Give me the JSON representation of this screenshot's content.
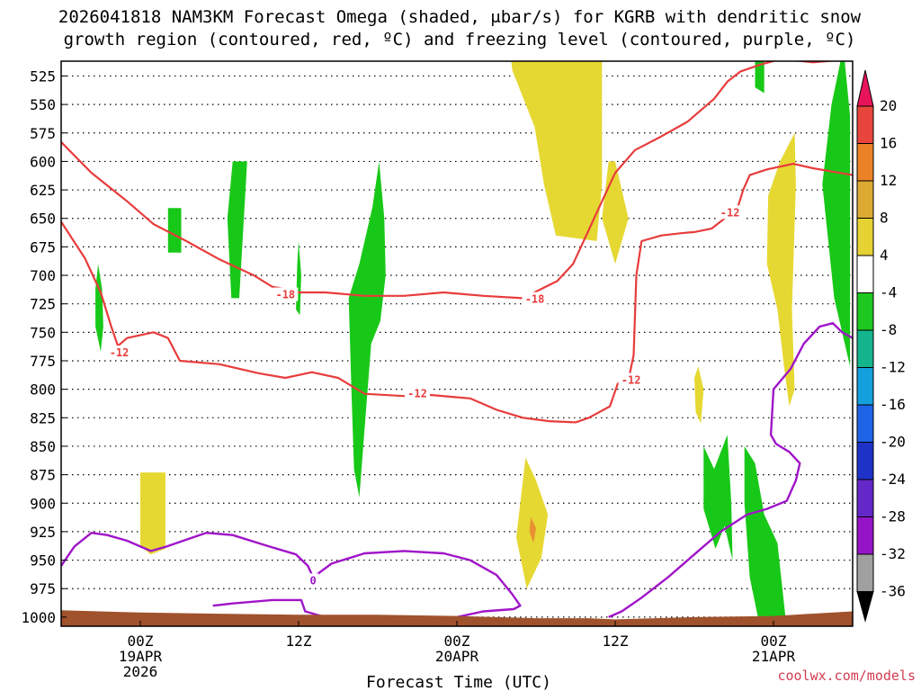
{
  "chart_data": {
    "type": "time-height cross section",
    "title_line1": "2026041818 NAM3KM Forecast Omega (shaded, μbar/s) for KGRB with dendritic snow",
    "title_line2": "growth region (contoured, red, ºC) and freezing level (contoured, purple, ºC)",
    "xlabel": "Forecast Time (UTC)",
    "credit": "coolwx.com/models",
    "y_axis": {
      "unit": "hPa",
      "range": [
        512,
        1008
      ],
      "ticks": [
        525,
        550,
        575,
        600,
        625,
        650,
        675,
        700,
        725,
        750,
        775,
        800,
        825,
        850,
        875,
        900,
        925,
        950,
        975,
        1000
      ],
      "grid": "dotted"
    },
    "x_axis": {
      "unit": "hours after 2026041818 UTC",
      "range": [
        0,
        60
      ],
      "ticks": [
        {
          "hour": 6,
          "line1": "00Z",
          "line2": "19APR",
          "line3": "2026"
        },
        {
          "hour": 18,
          "line1": "12Z",
          "line2": "",
          "line3": ""
        },
        {
          "hour": 30,
          "line1": "00Z",
          "line2": "20APR",
          "line3": ""
        },
        {
          "hour": 42,
          "line1": "12Z",
          "line2": "",
          "line3": ""
        },
        {
          "hour": 54,
          "line1": "00Z",
          "line2": "21APR",
          "line3": ""
        }
      ]
    },
    "colorbar": {
      "labels": [
        "20",
        "16",
        "12",
        "8",
        "4",
        "-4",
        "-8",
        "-12",
        "-16",
        "-20",
        "-24",
        "-28",
        "-32",
        "-36"
      ],
      "colors": [
        "#e8145a",
        "#e8463c",
        "#ec8228",
        "#dcaa32",
        "#e6d232",
        "#ffffff",
        "#1ec81e",
        "#14b48c",
        "#14a0dc",
        "#1e64e6",
        "#1e32c8",
        "#6428c8",
        "#9614c8",
        "#a0a0a0",
        "#000000"
      ]
    },
    "colors": {
      "omega_up": "#18c818",
      "omega_down_weak": "#e6d832",
      "omega_down_moderate": "#e89032",
      "dgz_contour": "#e83c3c",
      "freezing_level": "#a014c8",
      "terrain": "#a0522d"
    },
    "contour_labels": [
      {
        "text": "-18",
        "hour": 17.0,
        "p": 717,
        "color": "dgz"
      },
      {
        "text": "-18",
        "hour": 35.9,
        "p": 721,
        "color": "dgz"
      },
      {
        "text": "-12",
        "hour": 4.4,
        "p": 768,
        "color": "dgz"
      },
      {
        "text": "-12",
        "hour": 27.0,
        "p": 804,
        "color": "dgz"
      },
      {
        "text": "-12",
        "hour": 43.2,
        "p": 792,
        "color": "dgz"
      },
      {
        "text": "-12",
        "hour": 50.7,
        "p": 645,
        "color": "dgz"
      },
      {
        "text": "0",
        "hour": 19.1,
        "p": 968,
        "color": "freezing"
      }
    ],
    "omega_up_regions": [
      [
        [
          2.8,
          690
        ],
        [
          3.1,
          712
        ],
        [
          3.2,
          745
        ],
        [
          3.0,
          767
        ],
        [
          2.6,
          745
        ],
        [
          2.6,
          712
        ]
      ],
      [
        [
          8.1,
          641
        ],
        [
          9.1,
          641
        ],
        [
          9.1,
          680
        ],
        [
          8.1,
          680
        ]
      ],
      [
        [
          13.0,
          600
        ],
        [
          14.1,
          600
        ],
        [
          13.5,
          720
        ],
        [
          12.9,
          720
        ],
        [
          12.6,
          650
        ]
      ],
      [
        [
          18.0,
          670
        ],
        [
          18.2,
          700
        ],
        [
          18.1,
          735
        ],
        [
          17.8,
          730
        ],
        [
          17.9,
          690
        ]
      ],
      [
        [
          24.1,
          600
        ],
        [
          24.5,
          650
        ],
        [
          24.6,
          700
        ],
        [
          24.2,
          740
        ],
        [
          23.5,
          760
        ],
        [
          23.1,
          820
        ],
        [
          22.6,
          895
        ],
        [
          22.2,
          870
        ],
        [
          22.0,
          800
        ],
        [
          21.8,
          720
        ],
        [
          22.6,
          690
        ],
        [
          23.6,
          640
        ]
      ],
      [
        [
          52.6,
          500
        ],
        [
          53.3,
          500
        ],
        [
          53.3,
          540
        ],
        [
          52.6,
          535
        ]
      ],
      [
        [
          59.3,
          500
        ],
        [
          59.8,
          560
        ],
        [
          59.8,
          780
        ],
        [
          58.6,
          720
        ],
        [
          57.7,
          620
        ],
        [
          58.4,
          550
        ]
      ],
      [
        [
          48.7,
          850
        ],
        [
          49.5,
          870
        ],
        [
          50.5,
          840
        ],
        [
          50.8,
          900
        ],
        [
          50.9,
          950
        ],
        [
          50.3,
          920
        ],
        [
          49.6,
          940
        ],
        [
          48.7,
          905
        ]
      ],
      [
        [
          51.8,
          850
        ],
        [
          52.6,
          865
        ],
        [
          53.3,
          910
        ],
        [
          54.3,
          935
        ],
        [
          55.0,
          1010
        ],
        [
          53.0,
          1010
        ],
        [
          52.2,
          965
        ],
        [
          51.8,
          900
        ]
      ]
    ],
    "omega_down_regions": [
      [
        [
          6.0,
          873
        ],
        [
          7.9,
          873
        ],
        [
          7.9,
          940
        ],
        [
          6.8,
          945
        ],
        [
          6.0,
          938
        ]
      ],
      [
        [
          34.0,
          500
        ],
        [
          41.0,
          500
        ],
        [
          41.0,
          620
        ],
        [
          40.6,
          670
        ],
        [
          37.5,
          665
        ],
        [
          36.6,
          620
        ],
        [
          35.9,
          570
        ],
        [
          34.2,
          520
        ]
      ],
      [
        [
          42.0,
          600
        ],
        [
          43.0,
          650
        ],
        [
          42.0,
          690
        ],
        [
          41.0,
          650
        ],
        [
          41.5,
          600
        ]
      ],
      [
        [
          35.2,
          860
        ],
        [
          36.0,
          880
        ],
        [
          36.9,
          910
        ],
        [
          36.4,
          948
        ],
        [
          35.3,
          975
        ],
        [
          34.5,
          930
        ],
        [
          34.9,
          890
        ]
      ],
      [
        [
          48.3,
          780
        ],
        [
          48.7,
          800
        ],
        [
          48.5,
          830
        ],
        [
          48.1,
          820
        ],
        [
          48.0,
          790
        ]
      ],
      [
        [
          55.6,
          575
        ],
        [
          55.7,
          620
        ],
        [
          55.4,
          730
        ],
        [
          55.6,
          800
        ],
        [
          55.2,
          815
        ],
        [
          54.8,
          780
        ],
        [
          54.3,
          730
        ],
        [
          53.5,
          690
        ],
        [
          53.6,
          630
        ],
        [
          54.5,
          600
        ]
      ],
      [
        [
          35.7,
          920
        ],
        [
          35.9,
          940
        ],
        [
          35.6,
          935
        ]
      ]
    ],
    "omega_down_moderate_regions": [
      [
        [
          35.6,
          912
        ],
        [
          36.0,
          922
        ],
        [
          35.8,
          935
        ],
        [
          35.5,
          925
        ]
      ]
    ],
    "dgz_contours": [
      [
        [
          0.0,
          583
        ],
        [
          2.3,
          610
        ],
        [
          5.0,
          635
        ],
        [
          7.0,
          655
        ],
        [
          9.5,
          670
        ],
        [
          12.0,
          686
        ],
        [
          14.6,
          700
        ],
        [
          16.0,
          710
        ],
        [
          17.0,
          712
        ],
        [
          18.0,
          715
        ],
        [
          20.0,
          715
        ],
        [
          23.0,
          718
        ],
        [
          26.0,
          718
        ],
        [
          29.0,
          715
        ],
        [
          32.0,
          718
        ],
        [
          35.0,
          720
        ],
        [
          37.6,
          705
        ],
        [
          38.8,
          690
        ],
        [
          40.0,
          660
        ],
        [
          41.0,
          635
        ],
        [
          42.0,
          610
        ],
        [
          43.5,
          590
        ],
        [
          45.5,
          578
        ],
        [
          47.5,
          565
        ],
        [
          48.5,
          555
        ],
        [
          49.5,
          545
        ],
        [
          50.5,
          530
        ],
        [
          51.5,
          521
        ],
        [
          53.0,
          515
        ],
        [
          54.6,
          510
        ],
        [
          57.0,
          513
        ],
        [
          60.0,
          510
        ]
      ],
      [
        [
          0.0,
          653
        ],
        [
          1.8,
          685
        ],
        [
          3.0,
          715
        ],
        [
          3.8,
          745
        ],
        [
          4.3,
          762
        ],
        [
          5.0,
          755
        ],
        [
          7.0,
          750
        ],
        [
          8.1,
          755
        ],
        [
          9.0,
          775
        ],
        [
          12.0,
          778
        ],
        [
          15.0,
          786
        ],
        [
          17.0,
          790
        ],
        [
          19.0,
          785
        ],
        [
          21.0,
          790
        ],
        [
          23.0,
          804
        ],
        [
          26.0,
          806
        ],
        [
          28.0,
          805
        ],
        [
          31.0,
          808
        ],
        [
          33.0,
          818
        ],
        [
          35.0,
          825
        ],
        [
          37.0,
          828
        ],
        [
          39.0,
          829
        ],
        [
          40.0,
          825
        ],
        [
          41.6,
          815
        ],
        [
          42.2,
          795
        ],
        [
          43.0,
          792
        ],
        [
          43.4,
          770
        ],
        [
          43.6,
          700
        ],
        [
          44.0,
          670
        ],
        [
          45.5,
          665
        ],
        [
          47.0,
          663
        ],
        [
          48.0,
          662
        ],
        [
          49.3,
          659
        ],
        [
          50.3,
          650
        ],
        [
          51.3,
          640
        ],
        [
          51.7,
          625
        ],
        [
          52.2,
          612
        ],
        [
          53.5,
          607
        ],
        [
          55.5,
          602
        ],
        [
          57.0,
          606
        ],
        [
          60.0,
          612
        ]
      ]
    ],
    "freezing_contours": [
      [
        [
          0.0,
          955
        ],
        [
          1.0,
          938
        ],
        [
          2.3,
          926
        ],
        [
          3.5,
          928
        ],
        [
          5.0,
          933
        ],
        [
          6.8,
          942
        ],
        [
          8.0,
          938
        ],
        [
          9.5,
          932
        ],
        [
          11.0,
          926
        ],
        [
          13.0,
          928
        ],
        [
          15.5,
          937
        ],
        [
          17.8,
          945
        ],
        [
          18.7,
          955
        ],
        [
          19.1,
          965
        ],
        [
          20.5,
          953
        ],
        [
          23.0,
          944
        ],
        [
          26.0,
          942
        ],
        [
          29.0,
          944
        ],
        [
          31.0,
          950
        ],
        [
          33.0,
          963
        ],
        [
          34.2,
          980
        ],
        [
          34.8,
          990
        ],
        [
          34.3,
          993
        ],
        [
          32.0,
          995
        ],
        [
          30.0,
          1000
        ],
        [
          28.0,
          1002
        ],
        [
          26.0,
          1004
        ],
        [
          24.0,
          1003
        ],
        [
          21.5,
          1001
        ],
        [
          20.0,
          1000
        ],
        [
          18.5,
          995
        ],
        [
          18.2,
          985
        ],
        [
          17.0,
          985
        ],
        [
          16.0,
          985
        ],
        [
          13.0,
          988
        ],
        [
          11.5,
          990
        ]
      ],
      [
        [
          41.5,
          1000
        ],
        [
          42.5,
          995
        ],
        [
          44.0,
          983
        ],
        [
          46.0,
          965
        ],
        [
          48.0,
          945
        ],
        [
          50.0,
          925
        ],
        [
          52.0,
          910
        ],
        [
          53.5,
          905
        ],
        [
          55.0,
          898
        ],
        [
          55.7,
          880
        ],
        [
          56.0,
          865
        ],
        [
          55.2,
          855
        ],
        [
          54.2,
          848
        ],
        [
          53.8,
          840
        ],
        [
          54.0,
          800
        ],
        [
          55.3,
          782
        ],
        [
          56.3,
          760
        ],
        [
          57.5,
          745
        ],
        [
          58.5,
          742
        ],
        [
          59.2,
          750
        ],
        [
          60.0,
          755
        ]
      ]
    ],
    "terrain": [
      [
        0.0,
        994
      ],
      [
        6.0,
        996
      ],
      [
        12.0,
        997
      ],
      [
        18.0,
        998
      ],
      [
        24.0,
        998
      ],
      [
        30.0,
        999
      ],
      [
        36.0,
        1001
      ],
      [
        40.0,
        1001
      ],
      [
        42.0,
        1002
      ],
      [
        48.0,
        1000
      ],
      [
        54.0,
        999
      ],
      [
        60.0,
        995
      ]
    ]
  }
}
